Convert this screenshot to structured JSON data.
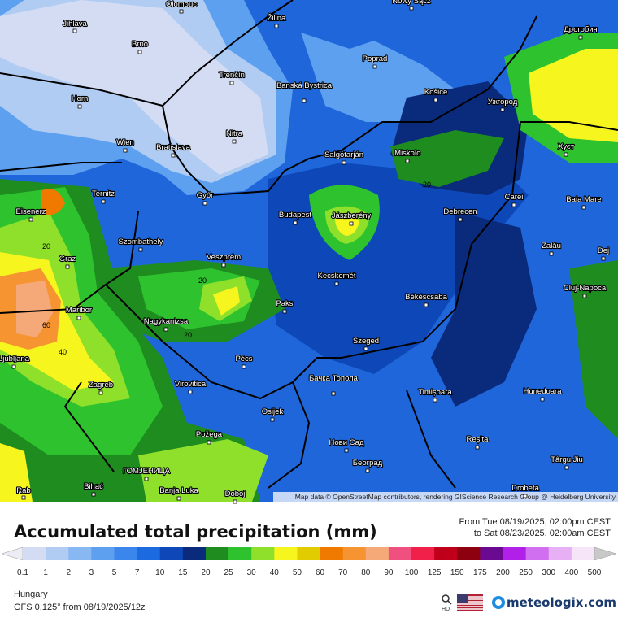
{
  "map": {
    "places": [
      "Olomouc",
      "Jihlava",
      "Brno",
      "Žilina",
      "Nowy Sącz",
      "Poprad",
      "Дрогобич",
      "Trenčín",
      "Banská Bystrica",
      "Košice",
      "Ужгород",
      "Horn",
      "Nitra",
      "Wien",
      "Bratislava",
      "Salgótarján",
      "Miskolc",
      "Хуст",
      "Ternitz",
      "Győr",
      "Carei",
      "Baia Mare",
      "Eisenerz",
      "Budapest",
      "Jászberény",
      "Debrecen",
      "Szombathely",
      "Zalău",
      "Dej",
      "Graz",
      "Veszprém",
      "Kecskemét",
      "Cluj-Napoca",
      "Maribor",
      "Paks",
      "Békéscsaba",
      "Nagykanizsa",
      "Szeged",
      "Pécs",
      "Бачка Топола",
      "Zagreb",
      "Virovitica",
      "Timișoara",
      "Hunedoara",
      "Osijek",
      "Požega",
      "Reșita",
      "Нови Сад",
      "Târgu Jiu",
      "ГОМЈЕНИЦА",
      "Београд",
      "Bihać",
      "Banja Luka",
      "Doboj",
      "Drobeta",
      "Ljubljana",
      "Rab"
    ],
    "contour_labels": [
      20,
      20,
      20,
      20,
      60,
      40
    ],
    "attribution": "Map data © OpenStreetMap contributors, rendering GIScience Research Group @ Heidelberg University"
  },
  "header": {
    "title": "Accumulated total precipitation (mm)",
    "from": "From Tue 08/19/2025, 02:00pm CEST",
    "to": "to Sat 08/23/2025, 02:00am CEST"
  },
  "legend": {
    "ticks": [
      0.1,
      1,
      2,
      3,
      5,
      7,
      10,
      15,
      20,
      25,
      30,
      40,
      50,
      60,
      70,
      80,
      90,
      100,
      125,
      150,
      175,
      200,
      250,
      300,
      400,
      500
    ],
    "colors": [
      "#ececf6",
      "#d4dcf4",
      "#b0ccf2",
      "#88b8f2",
      "#5ea0f0",
      "#3a86ec",
      "#1c6ae0",
      "#0e48b8",
      "#0a2a7c",
      "#1e8c1e",
      "#2ec22e",
      "#8ee02a",
      "#f6f61e",
      "#e0cc00",
      "#f07a00",
      "#f59430",
      "#f5a878",
      "#f05080",
      "#f0204a",
      "#c0001a",
      "#8c0010",
      "#6a0a90",
      "#b020e8",
      "#d070f0",
      "#e8b0f4",
      "#f6e4f8",
      "#c8c8c8"
    ]
  },
  "footer": {
    "region": "Hungary",
    "model": "GFS 0.125° from  08/19/2025/12z",
    "zoom_icon": "HD",
    "brand": "meteologix.com"
  }
}
